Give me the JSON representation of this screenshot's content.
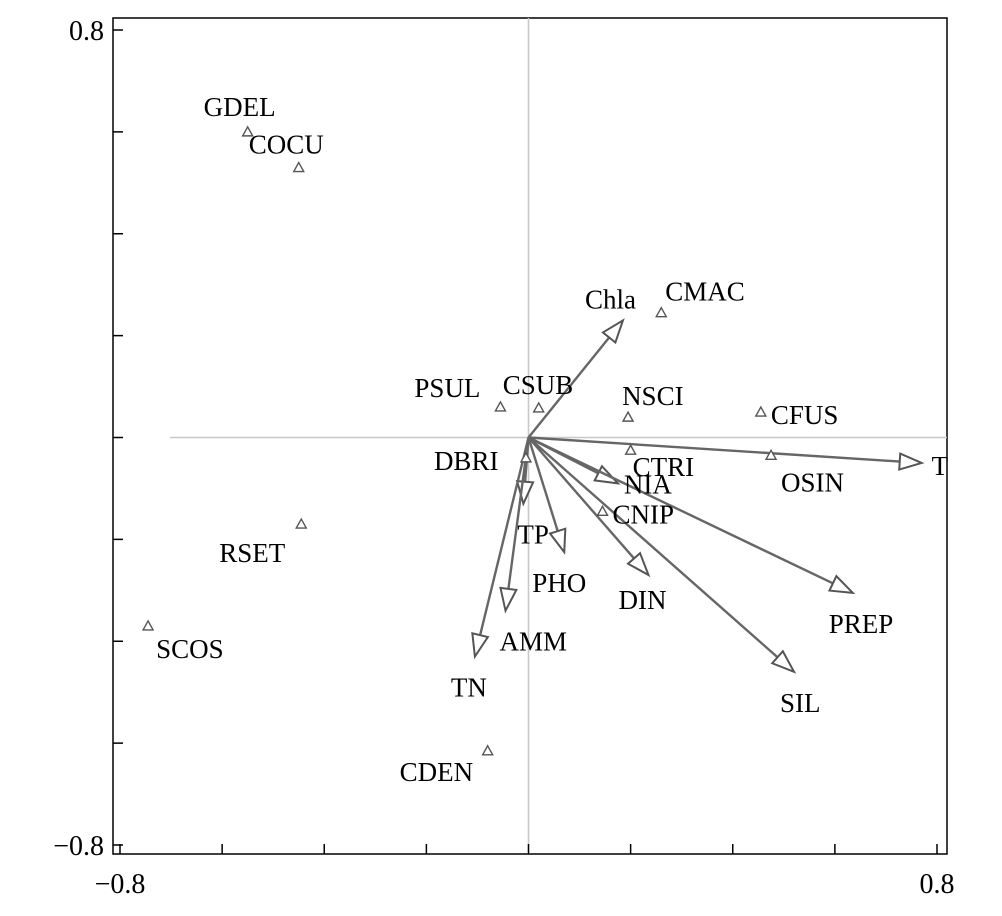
{
  "chart_data": {
    "type": "scatter",
    "title": "",
    "xlabel": "",
    "ylabel": "",
    "xlim": [
      -0.8,
      0.8
    ],
    "ylim": [
      -0.8,
      0.8
    ],
    "xtick_labels": [
      {
        "value": -0.8,
        "label": "−0.8"
      },
      {
        "value": 0.8,
        "label": "0.8"
      }
    ],
    "ytick_labels": [
      {
        "value": 0.8,
        "label": "0.8"
      },
      {
        "value": -0.8,
        "label": "−0.8"
      }
    ],
    "minor_ticks": [
      -0.6,
      -0.4,
      -0.2,
      0,
      0.2,
      0.4,
      0.6
    ],
    "zero_lines": true,
    "species": [
      {
        "label": "GDEL",
        "x": -0.55,
        "y": 0.6
      },
      {
        "label": "COCU",
        "x": -0.45,
        "y": 0.53
      },
      {
        "label": "CMAC",
        "x": 0.26,
        "y": 0.245
      },
      {
        "label": "PSUL",
        "x": -0.055,
        "y": 0.06
      },
      {
        "label": "CSUB",
        "x": 0.02,
        "y": 0.058
      },
      {
        "label": "NSCI",
        "x": 0.195,
        "y": 0.04
      },
      {
        "label": "CTRI",
        "x": 0.2,
        "y": -0.025
      },
      {
        "label": "CFUS",
        "x": 0.455,
        "y": 0.05
      },
      {
        "label": "OSIN",
        "x": 0.475,
        "y": -0.035
      },
      {
        "label": "DBRI",
        "x": -0.005,
        "y": -0.04
      },
      {
        "label": "CNIP",
        "x": 0.145,
        "y": -0.145
      },
      {
        "label": "RSET",
        "x": -0.445,
        "y": -0.17
      },
      {
        "label": "SCOS",
        "x": -0.745,
        "y": -0.37
      },
      {
        "label": "CDEN",
        "x": -0.08,
        "y": -0.615
      }
    ],
    "env_vectors": [
      {
        "label": "Chla",
        "x": 0.185,
        "y": 0.23
      },
      {
        "label": "T",
        "x": 0.77,
        "y": -0.05
      },
      {
        "label": "NIA",
        "x": 0.175,
        "y": -0.09
      },
      {
        "label": "TP",
        "x": -0.01,
        "y": -0.13
      },
      {
        "label": "PHO",
        "x": 0.07,
        "y": -0.225
      },
      {
        "label": "DIN",
        "x": 0.235,
        "y": -0.27
      },
      {
        "label": "PREP",
        "x": 0.635,
        "y": -0.305
      },
      {
        "label": "SIL",
        "x": 0.52,
        "y": -0.46
      },
      {
        "label": "AMM",
        "x": -0.045,
        "y": -0.34
      },
      {
        "label": "TN",
        "x": -0.105,
        "y": -0.43
      }
    ]
  }
}
